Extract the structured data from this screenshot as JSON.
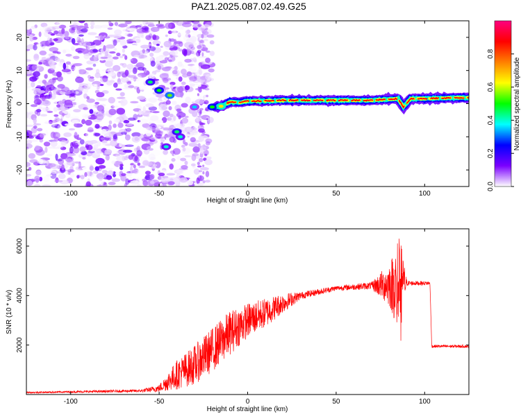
{
  "title": "PAZ1.2025.087.02.49.G25",
  "chart_data": [
    {
      "type": "heatmap",
      "xlabel": "Height of straight line (km)",
      "ylabel": "Frequency (Hz)",
      "xlim": [
        -125,
        125
      ],
      "ylim": [
        -25,
        25
      ],
      "x_ticks": [
        -100,
        -50,
        0,
        50,
        100
      ],
      "y_ticks": [
        -20,
        -10,
        0,
        10,
        20
      ],
      "colorbar": {
        "label": "Normalized spectral amplitude",
        "range": [
          0,
          1
        ],
        "ticks": [
          "0.0",
          "0.2",
          "0.4",
          "0.6",
          "0.8"
        ],
        "colors": [
          "#ffffff",
          "#7b00ff",
          "#0000ff",
          "#00ffff",
          "#00ff00",
          "#ffff00",
          "#ff8000",
          "#ff0000",
          "#ff0080"
        ]
      },
      "ridge": [
        {
          "x": -55,
          "f": 6.5
        },
        {
          "x": -50,
          "f": 4
        },
        {
          "x": -45,
          "f": 3
        },
        {
          "x": -40,
          "f": 1.5
        },
        {
          "x": -30,
          "f": 0
        },
        {
          "x": -20,
          "f": -1
        },
        {
          "x": -15,
          "f": -0.8
        },
        {
          "x": -10,
          "f": 0.5
        },
        {
          "x": -5,
          "f": 0.3
        },
        {
          "x": 0,
          "f": 0.8
        },
        {
          "x": 10,
          "f": 0.8
        },
        {
          "x": 20,
          "f": 1
        },
        {
          "x": 30,
          "f": 1
        },
        {
          "x": 50,
          "f": 1
        },
        {
          "x": 70,
          "f": 1
        },
        {
          "x": 85,
          "f": 1.5
        },
        {
          "x": 88,
          "f": -1
        },
        {
          "x": 92,
          "f": 1.5
        },
        {
          "x": 100,
          "f": 1.5
        },
        {
          "x": 110,
          "f": 1.7
        },
        {
          "x": 125,
          "f": 1.8
        }
      ]
    },
    {
      "type": "line",
      "xlabel": "Height of straight line (km)",
      "ylabel": "SNR (10 * v/v)",
      "xlim": [
        -125,
        125
      ],
      "ylim": [
        0,
        6700
      ],
      "x_ticks": [
        -100,
        -50,
        0,
        50,
        100
      ],
      "y_ticks": [
        2000,
        4000,
        6000
      ],
      "series_color": "#ff0000",
      "envelope": [
        {
          "x": -125,
          "y": 80,
          "noise": 30
        },
        {
          "x": -60,
          "y": 150,
          "noise": 60
        },
        {
          "x": -50,
          "y": 250,
          "noise": 150
        },
        {
          "x": -40,
          "y": 800,
          "noise": 600
        },
        {
          "x": -30,
          "y": 1200,
          "noise": 800
        },
        {
          "x": -20,
          "y": 1800,
          "noise": 900
        },
        {
          "x": -10,
          "y": 2500,
          "noise": 900
        },
        {
          "x": 0,
          "y": 3000,
          "noise": 700
        },
        {
          "x": 10,
          "y": 3300,
          "noise": 600
        },
        {
          "x": 20,
          "y": 3700,
          "noise": 400
        },
        {
          "x": 30,
          "y": 4000,
          "noise": 150
        },
        {
          "x": 50,
          "y": 4300,
          "noise": 100
        },
        {
          "x": 70,
          "y": 4400,
          "noise": 150
        },
        {
          "x": 80,
          "y": 4450,
          "noise": 900
        },
        {
          "x": 86,
          "y": 4400,
          "noise": 2000
        },
        {
          "x": 90,
          "y": 4500,
          "noise": 100
        },
        {
          "x": 103,
          "y": 4500,
          "noise": 80
        },
        {
          "x": 104,
          "y": 1950,
          "noise": 60
        },
        {
          "x": 125,
          "y": 1950,
          "noise": 60
        }
      ]
    }
  ]
}
